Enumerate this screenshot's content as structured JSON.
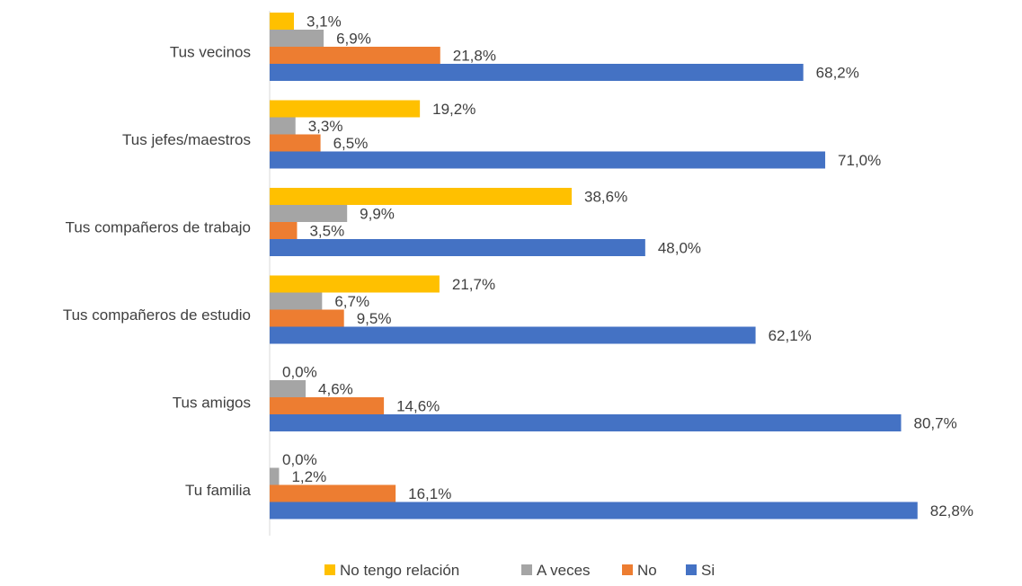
{
  "chart_data": {
    "type": "bar",
    "orientation": "horizontal",
    "categories": [
      "Tus vecinos",
      "Tus jefes/maestros",
      "Tus compañeros de trabajo",
      "Tus compañeros de estudio",
      "Tus amigos",
      "Tu familia"
    ],
    "series": [
      {
        "name": "No tengo relación",
        "color": "#FFC000",
        "values": [
          3.1,
          19.2,
          38.6,
          21.7,
          0.0,
          0.0
        ],
        "labels": [
          "3,1%",
          "19,2%",
          "38,6%",
          "21,7%",
          "0,0%",
          "0,0%"
        ]
      },
      {
        "name": "A veces",
        "color": "#A5A5A5",
        "values": [
          6.9,
          3.3,
          9.9,
          6.7,
          4.6,
          1.2
        ],
        "labels": [
          "6,9%",
          "3,3%",
          "9,9%",
          "6,7%",
          "4,6%",
          "1,2%"
        ]
      },
      {
        "name": "No",
        "color": "#ED7D31",
        "values": [
          21.8,
          6.5,
          3.5,
          9.5,
          14.6,
          16.1
        ],
        "labels": [
          "21,8%",
          "6,5%",
          "3,5%",
          "9,5%",
          "14,6%",
          "16,1%"
        ]
      },
      {
        "name": "Si",
        "color": "#4472C4",
        "values": [
          68.2,
          71.0,
          48.0,
          62.1,
          80.7,
          82.8
        ],
        "labels": [
          "68,2%",
          "71,0%",
          "48,0%",
          "62,1%",
          "80,7%",
          "82,8%"
        ]
      }
    ],
    "xlim": [
      0,
      85
    ],
    "grid": false,
    "legend": "bottom",
    "title": "",
    "xlabel": "",
    "ylabel": ""
  }
}
